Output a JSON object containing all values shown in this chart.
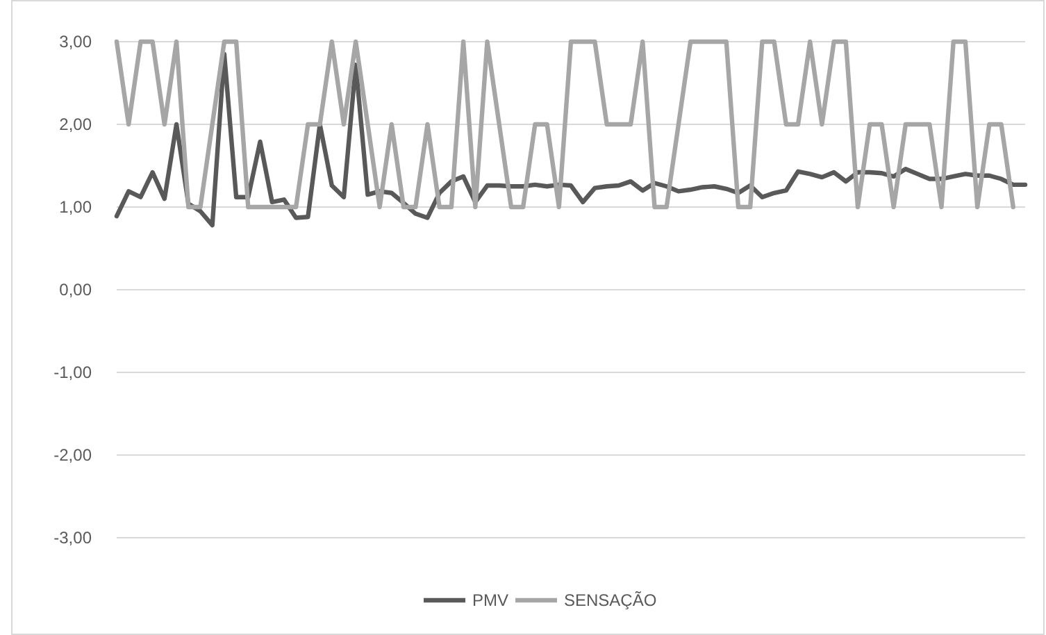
{
  "chart_data": {
    "type": "line",
    "categories": [
      null,
      null,
      null,
      null,
      null,
      null,
      null,
      null,
      null,
      null,
      null,
      null,
      null,
      null,
      null,
      null,
      null,
      null,
      null,
      null,
      null,
      null,
      null,
      null,
      null,
      null,
      null,
      null,
      null,
      null,
      null,
      null,
      null,
      null,
      null,
      null,
      null,
      null,
      null,
      null,
      null,
      null,
      null,
      null,
      null,
      null,
      null,
      null,
      null,
      null,
      null,
      null,
      null,
      null,
      null,
      null,
      null,
      null,
      null,
      null,
      null,
      null,
      null,
      null,
      null,
      null,
      null,
      null,
      null,
      null,
      null,
      null,
      null,
      null,
      null,
      null,
      null
    ],
    "series": [
      {
        "name": "PMV",
        "color": "#595959",
        "values": [
          0.89,
          1.19,
          1.12,
          1.42,
          1.1,
          2.0,
          1.04,
          0.95,
          0.78,
          2.85,
          1.12,
          1.12,
          1.79,
          1.06,
          1.09,
          0.87,
          0.88,
          2.0,
          1.26,
          1.12,
          2.72,
          1.15,
          1.19,
          1.17,
          1.05,
          0.92,
          0.87,
          1.17,
          1.31,
          1.37,
          1.06,
          1.26,
          1.26,
          1.25,
          1.25,
          1.27,
          1.25,
          1.27,
          1.26,
          1.06,
          1.23,
          1.25,
          1.26,
          1.31,
          1.2,
          1.29,
          1.25,
          1.19,
          1.21,
          1.24,
          1.25,
          1.22,
          1.17,
          1.26,
          1.12,
          1.17,
          1.2,
          1.43,
          1.4,
          1.36,
          1.42,
          1.31,
          1.42,
          1.42,
          1.41,
          1.37,
          1.46,
          1.4,
          1.34,
          1.34,
          1.37,
          1.4,
          1.38,
          1.38,
          1.34,
          1.27,
          1.27
        ]
      },
      {
        "name": "SENSAÇÃO",
        "color": "#a6a6a6",
        "values": [
          3,
          2,
          3,
          3,
          2,
          3,
          1,
          1,
          2,
          3,
          3,
          1,
          1,
          1,
          1,
          1,
          2,
          2,
          3,
          2,
          3,
          2,
          1,
          2,
          1,
          1,
          2,
          1,
          1,
          3,
          1,
          3,
          2,
          1,
          1,
          2,
          2,
          1,
          3,
          3,
          3,
          2,
          2,
          2,
          3,
          1,
          1,
          2,
          3,
          3,
          3,
          3,
          1,
          1,
          3,
          3,
          2,
          2,
          3,
          2,
          3,
          3,
          1,
          2,
          2,
          1,
          2,
          2,
          2,
          1,
          3,
          3,
          1,
          2,
          2,
          1,
          null
        ]
      }
    ],
    "ylim": [
      -3,
      3
    ],
    "yticks": [
      {
        "value": -3,
        "label": "-3,00"
      },
      {
        "value": -2,
        "label": "-2,00"
      },
      {
        "value": -1,
        "label": "-1,00"
      },
      {
        "value": 0,
        "label": "0,00"
      },
      {
        "value": 1,
        "label": "1,00"
      },
      {
        "value": 2,
        "label": "2,00"
      },
      {
        "value": 3,
        "label": "3,00"
      }
    ],
    "grid": "y",
    "legend": "bottom",
    "marker": "none",
    "line_style": "solid"
  }
}
